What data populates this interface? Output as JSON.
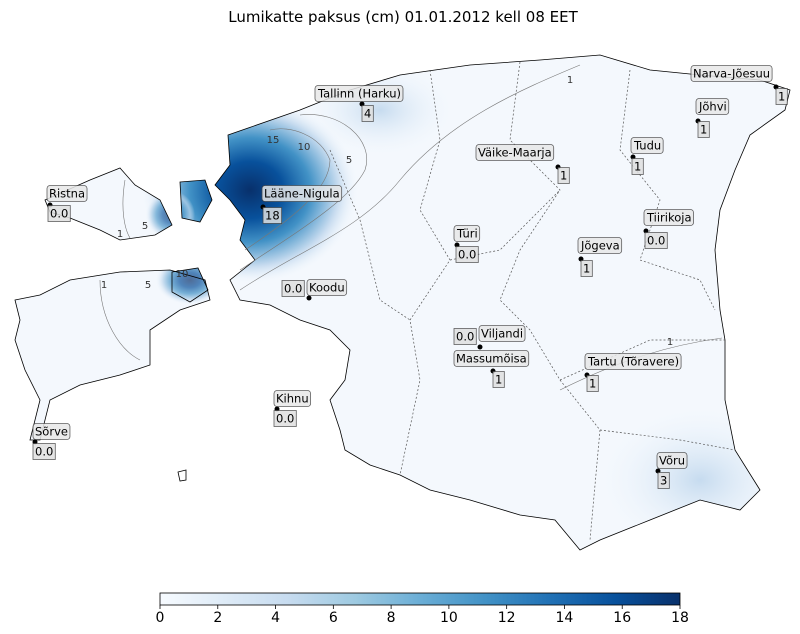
{
  "title": "Lumikatte paksus (cm) 01.01.2012 kell 08 EET",
  "stations": [
    {
      "name": "Tallinn (Harku)",
      "value": "4"
    },
    {
      "name": "Narva-Jõesuu",
      "value": "1"
    },
    {
      "name": "Jõhvi",
      "value": "1"
    },
    {
      "name": "Tudu",
      "value": "1"
    },
    {
      "name": "Väike-Maarja",
      "value": "1"
    },
    {
      "name": "Ristna",
      "value": "0.0"
    },
    {
      "name": "Lääne-Nigula",
      "value": "18"
    },
    {
      "name": "Türi",
      "value": "0.0"
    },
    {
      "name": "Tiirikoja",
      "value": "0.0"
    },
    {
      "name": "Jõgeva",
      "value": "1"
    },
    {
      "name": "Koodu",
      "value": "0.0"
    },
    {
      "name": "Viljandi",
      "value": "0.0"
    },
    {
      "name": "Massumõisa",
      "value": "1"
    },
    {
      "name": "Tartu (Tõravere)",
      "value": "1"
    },
    {
      "name": "Kihnu",
      "value": "0.0"
    },
    {
      "name": "Sõrve",
      "value": "0.0"
    },
    {
      "name": "Võru",
      "value": "3"
    }
  ],
  "contour_labels": [
    "15",
    "10",
    "5",
    "1",
    "5",
    "1",
    "10",
    "5",
    "1",
    "1"
  ],
  "colorbar": {
    "lim": [
      0,
      18
    ],
    "ticks": [
      0,
      2,
      4,
      6,
      8,
      10,
      12,
      14,
      16,
      18
    ]
  }
}
